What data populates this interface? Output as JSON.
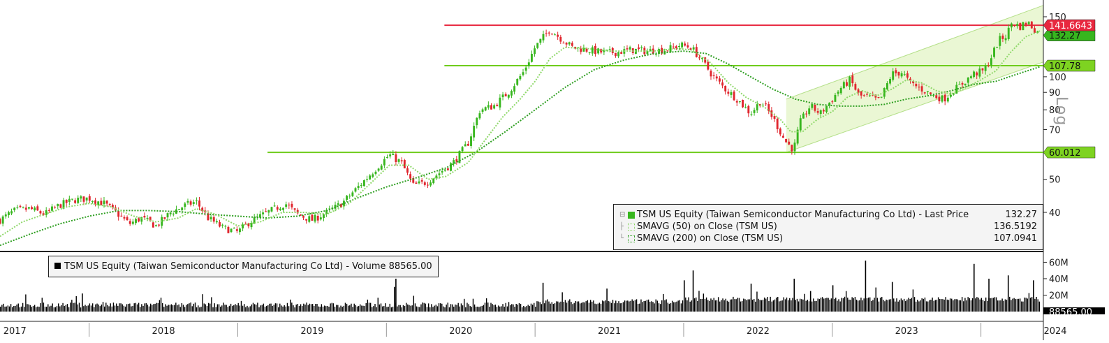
{
  "colors": {
    "up": "#37b61e",
    "down": "#e0262e",
    "sma50": "#8fd86a",
    "sma200": "#2f9f22",
    "support_line": "#6fcc1c",
    "resistance_line": "#e8283f",
    "channel_fill": "#e6f6cd",
    "volume": "#000000"
  },
  "icons": {
    "price_swatch": "green-square-icon",
    "sma50_swatch": "dotted-square-icon",
    "sma200_swatch": "dotted-square-icon",
    "volume_swatch": "black-square-icon"
  },
  "scale_label": "Log",
  "legend": {
    "price": {
      "label": "TSM US Equity (Taiwan Semiconductor Manufacturing Co Ltd) - Last Price",
      "value": "132.27"
    },
    "sma50": {
      "label": "SMAVG (50)  on Close (TSM US)",
      "value": "136.5192"
    },
    "sma200": {
      "label": "SMAVG (200)  on Close (TSM US)",
      "value": "107.0941"
    },
    "volume": "TSM US Equity (Taiwan Semiconductor Manufacturing Co Ltd) - Volume 88565.00"
  },
  "chart_data": {
    "type": "candlestick",
    "y_scale": "log",
    "ylim": [
      31,
      168
    ],
    "price_ticks": [
      40,
      50,
      60,
      70,
      80,
      90,
      100,
      150
    ],
    "price_tick_labels": [
      "40",
      "50",
      "60",
      "70",
      "80",
      "90",
      "100",
      "150"
    ],
    "x_axis_labels": [
      "2017",
      "2018",
      "2019",
      "2020",
      "2021",
      "2022",
      "2023",
      "2024"
    ],
    "x_range": [
      2017.4,
      2024.42
    ],
    "horizontal_lines": [
      {
        "level": 141.6643,
        "label": "141.6643",
        "start": 2020.39
      },
      {
        "level": 107.78,
        "label": "107.78",
        "start": 2020.39
      },
      {
        "level": 60.012,
        "label": "60.012",
        "start": 2019.2
      }
    ],
    "value_tags": [
      {
        "label": "132.27",
        "value": 132.27
      }
    ],
    "trend_channel": {
      "lower": [
        [
          2022.69,
          60.0
        ],
        [
          2024.42,
          110.5
        ]
      ],
      "upper": [
        [
          2022.69,
          86.0
        ],
        [
          2024.42,
          162.0
        ]
      ]
    },
    "price_path": [
      [
        2017.4,
        38
      ],
      [
        2017.5,
        40.5
      ],
      [
        2017.6,
        41
      ],
      [
        2017.7,
        39.5
      ],
      [
        2017.8,
        42
      ],
      [
        2017.9,
        43.5
      ],
      [
        2018.0,
        44
      ],
      [
        2018.1,
        42.5
      ],
      [
        2018.18,
        40
      ],
      [
        2018.27,
        37
      ],
      [
        2018.35,
        38.5
      ],
      [
        2018.45,
        36.5
      ],
      [
        2018.55,
        40
      ],
      [
        2018.65,
        42
      ],
      [
        2018.72,
        43
      ],
      [
        2018.8,
        38.5
      ],
      [
        2018.9,
        36
      ],
      [
        2019.0,
        35
      ],
      [
        2019.08,
        37.5
      ],
      [
        2019.2,
        40
      ],
      [
        2019.32,
        42.5
      ],
      [
        2019.4,
        39.5
      ],
      [
        2019.5,
        38
      ],
      [
        2019.6,
        40
      ],
      [
        2019.7,
        42.5
      ],
      [
        2019.82,
        48
      ],
      [
        2019.95,
        55
      ],
      [
        2020.02,
        59
      ],
      [
        2020.1,
        56
      ],
      [
        2020.18,
        48
      ],
      [
        2020.27,
        49
      ],
      [
        2020.35,
        52
      ],
      [
        2020.45,
        56
      ],
      [
        2020.55,
        64
      ],
      [
        2020.63,
        80
      ],
      [
        2020.72,
        82
      ],
      [
        2020.82,
        90
      ],
      [
        2020.92,
        103
      ],
      [
        2021.0,
        122
      ],
      [
        2021.1,
        138
      ],
      [
        2021.15,
        132
      ],
      [
        2021.25,
        122
      ],
      [
        2021.35,
        120
      ],
      [
        2021.45,
        118
      ],
      [
        2021.55,
        118
      ],
      [
        2021.65,
        120
      ],
      [
        2021.75,
        119
      ],
      [
        2021.88,
        120
      ],
      [
        2021.98,
        124
      ],
      [
        2022.05,
        122
      ],
      [
        2022.12,
        112
      ],
      [
        2022.2,
        100
      ],
      [
        2022.28,
        92
      ],
      [
        2022.36,
        86
      ],
      [
        2022.45,
        78
      ],
      [
        2022.52,
        85
      ],
      [
        2022.6,
        76
      ],
      [
        2022.68,
        65
      ],
      [
        2022.74,
        61
      ],
      [
        2022.78,
        73
      ],
      [
        2022.85,
        82
      ],
      [
        2022.92,
        78
      ],
      [
        2023.0,
        86
      ],
      [
        2023.05,
        92
      ],
      [
        2023.12,
        98
      ],
      [
        2023.18,
        88
      ],
      [
        2023.25,
        87
      ],
      [
        2023.32,
        85
      ],
      [
        2023.4,
        102
      ],
      [
        2023.47,
        103
      ],
      [
        2023.52,
        96
      ],
      [
        2023.6,
        92
      ],
      [
        2023.68,
        88
      ],
      [
        2023.75,
        86
      ],
      [
        2023.8,
        90
      ],
      [
        2023.88,
        96
      ],
      [
        2023.95,
        102
      ],
      [
        2024.02,
        104
      ],
      [
        2024.06,
        112
      ],
      [
        2024.12,
        128
      ],
      [
        2024.17,
        132
      ],
      [
        2024.21,
        145
      ],
      [
        2024.26,
        140
      ],
      [
        2024.31,
        145
      ],
      [
        2024.36,
        138
      ],
      [
        2024.4,
        132.27
      ]
    ],
    "sma50_path": [
      [
        2017.4,
        34
      ],
      [
        2017.55,
        37.5
      ],
      [
        2017.7,
        39.5
      ],
      [
        2017.85,
        41.5
      ],
      [
        2018.0,
        42.5
      ],
      [
        2018.15,
        41.5
      ],
      [
        2018.3,
        39
      ],
      [
        2018.45,
        37.5
      ],
      [
        2018.6,
        38.5
      ],
      [
        2018.72,
        41
      ],
      [
        2018.85,
        39.5
      ],
      [
        2019.0,
        36.5
      ],
      [
        2019.15,
        37.5
      ],
      [
        2019.3,
        40
      ],
      [
        2019.45,
        40
      ],
      [
        2019.6,
        39.5
      ],
      [
        2019.75,
        42.5
      ],
      [
        2019.9,
        49
      ],
      [
        2020.02,
        55
      ],
      [
        2020.15,
        55
      ],
      [
        2020.28,
        50
      ],
      [
        2020.4,
        51
      ],
      [
        2020.55,
        56
      ],
      [
        2020.65,
        64
      ],
      [
        2020.78,
        76
      ],
      [
        2020.9,
        86
      ],
      [
        2021.0,
        97
      ],
      [
        2021.1,
        113
      ],
      [
        2021.2,
        122
      ],
      [
        2021.35,
        121
      ],
      [
        2021.5,
        119
      ],
      [
        2021.65,
        119
      ],
      [
        2021.8,
        119
      ],
      [
        2021.95,
        121
      ],
      [
        2022.05,
        120
      ],
      [
        2022.18,
        110
      ],
      [
        2022.3,
        96
      ],
      [
        2022.42,
        87
      ],
      [
        2022.55,
        81
      ],
      [
        2022.65,
        75
      ],
      [
        2022.72,
        69
      ],
      [
        2022.8,
        69
      ],
      [
        2022.9,
        75
      ],
      [
        2023.0,
        79
      ],
      [
        2023.1,
        87
      ],
      [
        2023.2,
        91
      ],
      [
        2023.3,
        88
      ],
      [
        2023.4,
        92
      ],
      [
        2023.5,
        98
      ],
      [
        2023.6,
        96
      ],
      [
        2023.7,
        91
      ],
      [
        2023.8,
        89
      ],
      [
        2023.9,
        93
      ],
      [
        2024.0,
        98
      ],
      [
        2024.1,
        104
      ],
      [
        2024.2,
        118
      ],
      [
        2024.3,
        131
      ],
      [
        2024.4,
        136.52
      ]
    ],
    "sma200_path": [
      [
        2017.4,
        32
      ],
      [
        2017.6,
        34.5
      ],
      [
        2017.8,
        37
      ],
      [
        2018.0,
        39
      ],
      [
        2018.2,
        40.5
      ],
      [
        2018.4,
        40.5
      ],
      [
        2018.6,
        40.2
      ],
      [
        2018.8,
        39.5
      ],
      [
        2019.0,
        39
      ],
      [
        2019.2,
        38.5
      ],
      [
        2019.4,
        39
      ],
      [
        2019.6,
        40.5
      ],
      [
        2019.8,
        44
      ],
      [
        2020.0,
        47.5
      ],
      [
        2020.2,
        50.5
      ],
      [
        2020.4,
        54
      ],
      [
        2020.6,
        60
      ],
      [
        2020.8,
        69
      ],
      [
        2021.0,
        80
      ],
      [
        2021.2,
        93
      ],
      [
        2021.4,
        105
      ],
      [
        2021.6,
        112
      ],
      [
        2021.8,
        117
      ],
      [
        2022.0,
        119
      ],
      [
        2022.15,
        117
      ],
      [
        2022.3,
        109
      ],
      [
        2022.45,
        100
      ],
      [
        2022.6,
        92
      ],
      [
        2022.75,
        86
      ],
      [
        2022.9,
        83
      ],
      [
        2023.05,
        82
      ],
      [
        2023.2,
        82
      ],
      [
        2023.35,
        83
      ],
      [
        2023.5,
        86
      ],
      [
        2023.65,
        88
      ],
      [
        2023.8,
        91
      ],
      [
        2023.95,
        95
      ],
      [
        2024.1,
        97
      ],
      [
        2024.25,
        102
      ],
      [
        2024.4,
        107.09
      ]
    ],
    "volume_ticks": [
      20,
      40,
      60
    ],
    "volume_tick_labels": [
      "20M",
      "40M",
      "60M"
    ],
    "volume_unit": "M",
    "volume_ylim": [
      0,
      68
    ],
    "volume_last_label": "88565.00",
    "volume_spikes": [
      [
        2017.95,
        22
      ],
      [
        2020.06,
        40
      ],
      [
        2020.05,
        30
      ],
      [
        2021.05,
        35
      ],
      [
        2021.48,
        28
      ],
      [
        2022.06,
        50
      ],
      [
        2022.0,
        38
      ],
      [
        2022.45,
        34
      ],
      [
        2022.74,
        40
      ],
      [
        2022.85,
        25
      ],
      [
        2023.0,
        32
      ],
      [
        2023.22,
        62
      ],
      [
        2023.4,
        36
      ],
      [
        2023.95,
        58
      ],
      [
        2024.05,
        40
      ],
      [
        2024.18,
        44
      ],
      [
        2024.35,
        38
      ]
    ]
  }
}
